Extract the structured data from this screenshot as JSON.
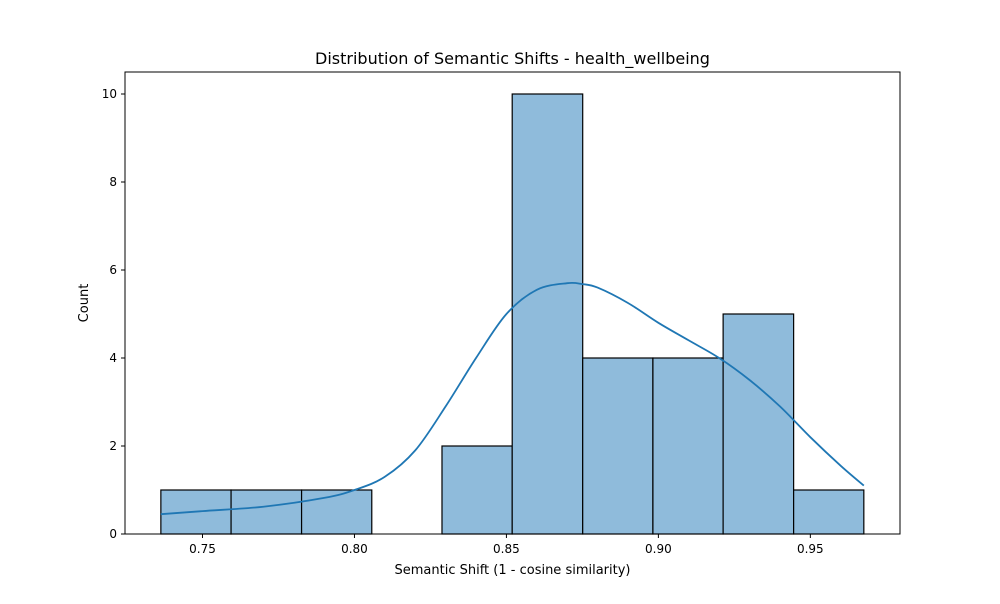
{
  "chart_data": {
    "type": "histogram",
    "title": "Distribution of Semantic Shifts - health_wellbeing",
    "xlabel": "Semantic Shift (1 - cosine similarity)",
    "ylabel": "Count",
    "xlim": [
      0.7245,
      0.9795
    ],
    "ylim": [
      0,
      10.5
    ],
    "xticks": [
      {
        "value": 0.75,
        "label": "0.75"
      },
      {
        "value": 0.8,
        "label": "0.80"
      },
      {
        "value": 0.85,
        "label": "0.85"
      },
      {
        "value": 0.9,
        "label": "0.90"
      },
      {
        "value": 0.95,
        "label": "0.95"
      }
    ],
    "yticks": [
      {
        "value": 0,
        "label": "0"
      },
      {
        "value": 2,
        "label": "2"
      },
      {
        "value": 4,
        "label": "4"
      },
      {
        "value": 6,
        "label": "6"
      },
      {
        "value": 8,
        "label": "8"
      },
      {
        "value": 10,
        "label": "10"
      }
    ],
    "bins": [
      {
        "x0": 0.7363,
        "x1": 0.7594,
        "count": 1
      },
      {
        "x0": 0.7594,
        "x1": 0.7826,
        "count": 1
      },
      {
        "x0": 0.7826,
        "x1": 0.8057,
        "count": 1
      },
      {
        "x0": 0.8057,
        "x1": 0.8288,
        "count": 0
      },
      {
        "x0": 0.8288,
        "x1": 0.8519,
        "count": 2
      },
      {
        "x0": 0.8519,
        "x1": 0.8751,
        "count": 10
      },
      {
        "x0": 0.8751,
        "x1": 0.8982,
        "count": 4
      },
      {
        "x0": 0.8982,
        "x1": 0.9213,
        "count": 4
      },
      {
        "x0": 0.9213,
        "x1": 0.9445,
        "count": 5
      },
      {
        "x0": 0.9445,
        "x1": 0.9676,
        "count": 1
      }
    ],
    "kde": {
      "x": [
        0.7363,
        0.75,
        0.77,
        0.79,
        0.8,
        0.81,
        0.82,
        0.83,
        0.84,
        0.85,
        0.86,
        0.87,
        0.875,
        0.88,
        0.89,
        0.9,
        0.91,
        0.92,
        0.93,
        0.94,
        0.95,
        0.96,
        0.9676
      ],
      "y": [
        0.45,
        0.52,
        0.62,
        0.82,
        1.0,
        1.3,
        1.9,
        2.9,
        4.0,
        5.0,
        5.55,
        5.7,
        5.68,
        5.6,
        5.25,
        4.8,
        4.4,
        4.0,
        3.5,
        2.9,
        2.2,
        1.55,
        1.1
      ]
    },
    "colors": {
      "bar_fill": "#8fbbdb",
      "bar_edge": "#000000",
      "kde_line": "#1f77b4"
    },
    "grid": false,
    "legend": "none"
  }
}
